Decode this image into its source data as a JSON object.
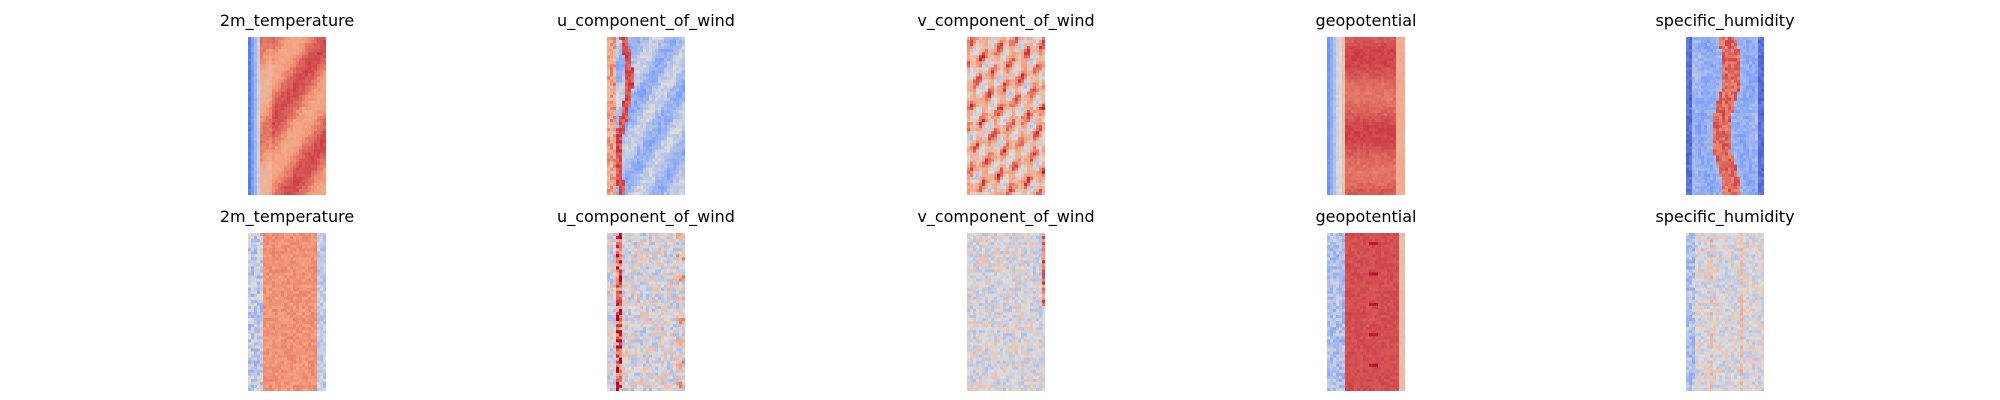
{
  "chart_data": [
    {
      "type": "heatmap",
      "title": "2m_temperature",
      "colormap": "coolwarm",
      "axes": "off"
    },
    {
      "type": "heatmap",
      "title": "u_component_of_wind",
      "colormap": "coolwarm",
      "axes": "off"
    },
    {
      "type": "heatmap",
      "title": "v_component_of_wind",
      "colormap": "coolwarm",
      "axes": "off"
    },
    {
      "type": "heatmap",
      "title": "geopotential",
      "colormap": "coolwarm",
      "axes": "off"
    },
    {
      "type": "heatmap",
      "title": "specific_humidity",
      "colormap": "coolwarm",
      "axes": "off"
    },
    {
      "type": "heatmap",
      "title": "2m_temperature",
      "colormap": "coolwarm",
      "axes": "off"
    },
    {
      "type": "heatmap",
      "title": "u_component_of_wind",
      "colormap": "coolwarm",
      "axes": "off"
    },
    {
      "type": "heatmap",
      "title": "v_component_of_wind",
      "colormap": "coolwarm",
      "axes": "off"
    },
    {
      "type": "heatmap",
      "title": "geopotential",
      "colormap": "coolwarm",
      "axes": "off"
    },
    {
      "type": "heatmap",
      "title": "specific_humidity",
      "colormap": "coolwarm",
      "axes": "off"
    }
  ]
}
